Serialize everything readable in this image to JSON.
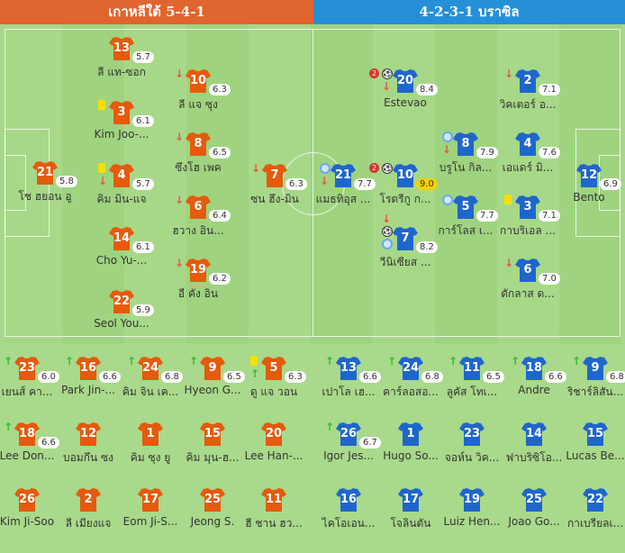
{
  "header": {
    "home_title": "เกาหลีใต้ 5-4-1",
    "away_title": "4-2-3-1 บราซิล"
  },
  "colors": {
    "home": "#e55a0c",
    "away": "#1f66cc",
    "home_header": "#e0652e",
    "away_header": "#2590d8",
    "pitch": "#a7d888",
    "top_rating": "#f5d000"
  },
  "home": {
    "formation": "5-4-1",
    "starters": [
      {
        "number": "21",
        "name": "โช ฮยอน อู",
        "rating": "5.8",
        "events": []
      },
      {
        "number": "13",
        "name": "ลี แท-ซอก",
        "rating": "5.7",
        "events": []
      },
      {
        "number": "3",
        "name": "Kim Joo-...",
        "rating": "6.1",
        "events": [
          "yellow-card"
        ]
      },
      {
        "number": "4",
        "name": "คิม มิน-แจ",
        "rating": "5.7",
        "events": [
          "yellow-card",
          "sub-off"
        ]
      },
      {
        "number": "14",
        "name": "Cho Yu-...",
        "rating": "6.1",
        "events": []
      },
      {
        "number": "22",
        "name": "Seol You...",
        "rating": "5.9",
        "events": []
      },
      {
        "number": "10",
        "name": "ลี แจ ซุง",
        "rating": "6.3",
        "events": [
          "sub-off"
        ]
      },
      {
        "number": "8",
        "name": "ซึงโฮ เพค",
        "rating": "6.5",
        "events": [
          "sub-off"
        ]
      },
      {
        "number": "6",
        "name": "ฮวาง อิน...",
        "rating": "6.4",
        "events": [
          "sub-off"
        ]
      },
      {
        "number": "19",
        "name": "อี คัง อิน",
        "rating": "6.2",
        "events": [
          "sub-off"
        ]
      },
      {
        "number": "7",
        "name": "ซน ฮึง-มิน",
        "rating": "6.3",
        "events": [
          "sub-off"
        ]
      }
    ],
    "bench": [
      {
        "number": "23",
        "name": "เยนส์ คา...",
        "rating": "6.0",
        "events": [
          "sub-on"
        ]
      },
      {
        "number": "16",
        "name": "Park Jin-...",
        "rating": "6.6",
        "events": [
          "sub-on"
        ]
      },
      {
        "number": "24",
        "name": "คิม จิน เค...",
        "rating": "6.8",
        "events": [
          "sub-on"
        ]
      },
      {
        "number": "9",
        "name": "Hyeon G...",
        "rating": "6.5",
        "events": [
          "sub-on"
        ]
      },
      {
        "number": "5",
        "name": "ดู แจ วอน",
        "rating": "6.3",
        "events": [
          "yellow-card",
          "sub-on"
        ]
      },
      {
        "number": "18",
        "name": "Lee Don...",
        "rating": "6.6",
        "events": [
          "sub-on"
        ]
      },
      {
        "number": "12",
        "name": "บอมกึน ซง",
        "rating": null,
        "events": []
      },
      {
        "number": "1",
        "name": "คิม ซุง ยู",
        "rating": null,
        "events": []
      },
      {
        "number": "15",
        "name": "คิม มุน-ฮ...",
        "rating": null,
        "events": []
      },
      {
        "number": "20",
        "name": "Lee Han-...",
        "rating": null,
        "events": []
      },
      {
        "number": "26",
        "name": "Kim Ji-Soo",
        "rating": null,
        "events": []
      },
      {
        "number": "2",
        "name": "ลี เมียงแจ",
        "rating": null,
        "events": []
      },
      {
        "number": "17",
        "name": "Eom Ji-S...",
        "rating": null,
        "events": []
      },
      {
        "number": "25",
        "name": "Jeong S.",
        "rating": null,
        "events": []
      },
      {
        "number": "11",
        "name": "ฮี ชาน ฮว...",
        "rating": null,
        "events": []
      }
    ]
  },
  "away": {
    "formation": "4-2-3-1",
    "starters": [
      {
        "number": "12",
        "name": "Bento",
        "rating": "6.9",
        "events": []
      },
      {
        "number": "2",
        "name": "วิคเตอร์ อ...",
        "rating": "7.1",
        "events": [
          "sub-off"
        ]
      },
      {
        "number": "4",
        "name": "เอแดร์ มิ...",
        "rating": "7.6",
        "events": []
      },
      {
        "number": "3",
        "name": "กาบริเอล ...",
        "rating": "7.1",
        "events": [
          "yellow-card"
        ]
      },
      {
        "number": "6",
        "name": "ดักลาส ด...",
        "rating": "7.0",
        "events": [
          "sub-off"
        ]
      },
      {
        "number": "8",
        "name": "บรูโน กิล...",
        "rating": "7.9",
        "events": [
          "assist",
          "sub-off"
        ]
      },
      {
        "number": "5",
        "name": "การ์โลส เ...",
        "rating": "7.7",
        "events": [
          "assist"
        ]
      },
      {
        "number": "20",
        "name": "Estevao",
        "rating": "8.4",
        "events": [
          "goal:2",
          "sub-off"
        ]
      },
      {
        "number": "10",
        "name": "โรดรีกู ก...",
        "rating": "9.0",
        "top_rated": true,
        "events": [
          "goal:2"
        ]
      },
      {
        "number": "7",
        "name": "วีนิเซียส ...",
        "rating": "8.2",
        "events": [
          "sub-off",
          "goal",
          "assist"
        ]
      },
      {
        "number": "21",
        "name": "แมธทิอุส ...",
        "rating": "7.7",
        "events": [
          "assist",
          "sub-off"
        ]
      }
    ],
    "bench": [
      {
        "number": "13",
        "name": "เปาโล เฮ...",
        "rating": "6.6",
        "events": [
          "sub-on"
        ]
      },
      {
        "number": "24",
        "name": "คาร์ลอสอ...",
        "rating": "6.8",
        "events": [
          "sub-on"
        ]
      },
      {
        "number": "11",
        "name": "ลูคัส โทเ...",
        "rating": "6.5",
        "events": [
          "sub-on"
        ]
      },
      {
        "number": "18",
        "name": "Andre",
        "rating": "6.6",
        "events": [
          "sub-on"
        ]
      },
      {
        "number": "9",
        "name": "ริชาร์ลิสัน...",
        "rating": "6.8",
        "events": [
          "sub-on"
        ]
      },
      {
        "number": "26",
        "name": "Igor Jes...",
        "rating": "6.7",
        "events": [
          "sub-on"
        ]
      },
      {
        "number": "1",
        "name": "Hugo So...",
        "rating": null,
        "events": []
      },
      {
        "number": "23",
        "name": "จอห์น วิค...",
        "rating": null,
        "events": []
      },
      {
        "number": "14",
        "name": "ฟาบริซิโอ...",
        "rating": null,
        "events": []
      },
      {
        "number": "15",
        "name": "Lucas Be...",
        "rating": null,
        "events": []
      },
      {
        "number": "16",
        "name": "ไคโอเอน...",
        "rating": null,
        "events": []
      },
      {
        "number": "17",
        "name": "โจลินตัน",
        "rating": null,
        "events": []
      },
      {
        "number": "19",
        "name": "Luiz Hen...",
        "rating": null,
        "events": []
      },
      {
        "number": "25",
        "name": "Joao Go...",
        "rating": null,
        "events": []
      },
      {
        "number": "22",
        "name": "กาเบรียลเ...",
        "rating": null,
        "events": []
      }
    ]
  }
}
